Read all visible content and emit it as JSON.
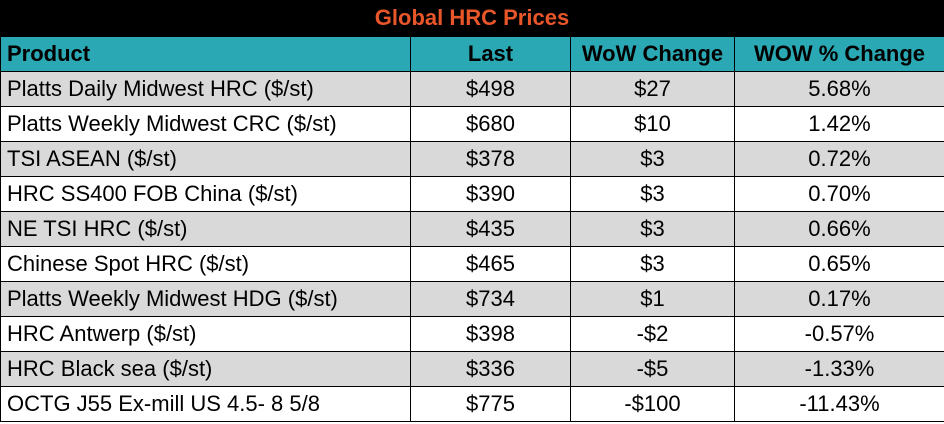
{
  "title": "Global HRC Prices",
  "columns": [
    "Product",
    "Last",
    "WoW Change",
    "WOW % Change"
  ],
  "rows": [
    [
      "Platts Daily Midwest HRC ($/st)",
      "$498",
      "$27",
      "5.68%"
    ],
    [
      "Platts Weekly Midwest CRC ($/st)",
      "$680",
      "$10",
      "1.42%"
    ],
    [
      "TSI ASEAN ($/st)",
      "$378",
      "$3",
      "0.72%"
    ],
    [
      "HRC SS400 FOB China ($/st)",
      "$390",
      "$3",
      "0.70%"
    ],
    [
      "NE TSI HRC ($/st)",
      "$435",
      "$3",
      "0.66%"
    ],
    [
      "Chinese Spot HRC ($/st)",
      "$465",
      "$3",
      "0.65%"
    ],
    [
      "Platts Weekly Midwest HDG ($/st)",
      "$734",
      "$1",
      "0.17%"
    ],
    [
      "HRC Antwerp ($/st)",
      "$398",
      "-$2",
      "-0.57%"
    ],
    [
      "HRC Black sea ($/st)",
      "$336",
      "-$5",
      "-1.33%"
    ],
    [
      "OCTG J55 Ex-mill US 4.5- 8 5/8",
      "$775",
      "-$100",
      "-11.43%"
    ]
  ],
  "colors": {
    "title_bg": "#000000",
    "title_text": "#e8562a",
    "header_bg": "#2aa8b4",
    "row_alt_bg": "#d9d9d9",
    "row_bg": "#ffffff"
  }
}
